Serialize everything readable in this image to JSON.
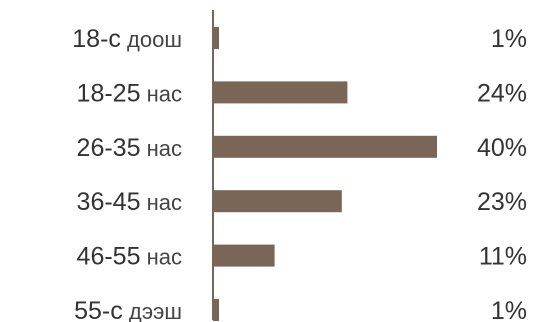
{
  "chart_data": {
    "type": "bar",
    "orientation": "horizontal",
    "categories": [
      {
        "prefix": "18-с",
        "suffix": "доош"
      },
      {
        "prefix": "18-25",
        "suffix": "нас"
      },
      {
        "prefix": "26-35",
        "suffix": "нас"
      },
      {
        "prefix": "36-45",
        "suffix": "нас"
      },
      {
        "prefix": "46-55",
        "suffix": "нас"
      },
      {
        "prefix": "55-с",
        "suffix": "дээш"
      }
    ],
    "values": [
      1,
      24,
      40,
      23,
      11,
      1
    ],
    "value_labels": [
      "1%",
      "24%",
      "40%",
      "23%",
      "11%",
      "1%"
    ],
    "unit": "%",
    "xlim": [
      0,
      40
    ],
    "grid": false,
    "legend": "none",
    "colors": {
      "bar": "#7a6656",
      "axis": "#7a6656",
      "text": "#333333"
    }
  }
}
